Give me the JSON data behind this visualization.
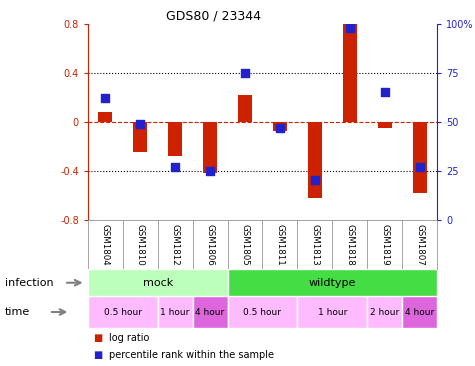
{
  "title": "GDS80 / 23344",
  "samples": [
    "GSM1804",
    "GSM1810",
    "GSM1812",
    "GSM1806",
    "GSM1805",
    "GSM1811",
    "GSM1813",
    "GSM1818",
    "GSM1819",
    "GSM1807"
  ],
  "log_ratio": [
    0.08,
    -0.25,
    -0.28,
    -0.42,
    0.22,
    -0.08,
    -0.62,
    0.82,
    -0.05,
    -0.58
  ],
  "percentile": [
    62,
    49,
    27,
    25,
    75,
    47,
    20,
    98,
    65,
    27
  ],
  "ylim": [
    -0.8,
    0.8
  ],
  "right_ylim": [
    0,
    100
  ],
  "right_yticks": [
    0,
    25,
    50,
    75,
    100
  ],
  "right_yticklabels": [
    "0",
    "25",
    "50",
    "75",
    "100%"
  ],
  "left_yticks": [
    -0.8,
    -0.4,
    0.0,
    0.4,
    0.8
  ],
  "dotted_lines": [
    -0.4,
    0.4
  ],
  "zero_line": 0.0,
  "bar_color": "#cc2200",
  "dot_color": "#2222cc",
  "infection_groups": [
    {
      "label": "mock",
      "start": 0,
      "end": 4,
      "color": "#bbffbb"
    },
    {
      "label": "wildtype",
      "start": 4,
      "end": 10,
      "color": "#44dd44"
    }
  ],
  "time_groups": [
    {
      "label": "0.5 hour",
      "start": 0,
      "end": 2,
      "color": "#ffbbff"
    },
    {
      "label": "1 hour",
      "start": 2,
      "end": 3,
      "color": "#ffbbff"
    },
    {
      "label": "4 hour",
      "start": 3,
      "end": 4,
      "color": "#dd66dd"
    },
    {
      "label": "0.5 hour",
      "start": 4,
      "end": 6,
      "color": "#ffbbff"
    },
    {
      "label": "1 hour",
      "start": 6,
      "end": 8,
      "color": "#ffbbff"
    },
    {
      "label": "2 hour",
      "start": 8,
      "end": 9,
      "color": "#ffbbff"
    },
    {
      "label": "4 hour",
      "start": 9,
      "end": 10,
      "color": "#dd66dd"
    }
  ],
  "legend_label_ratio": "log ratio",
  "legend_label_pct": "percentile rank within the sample"
}
